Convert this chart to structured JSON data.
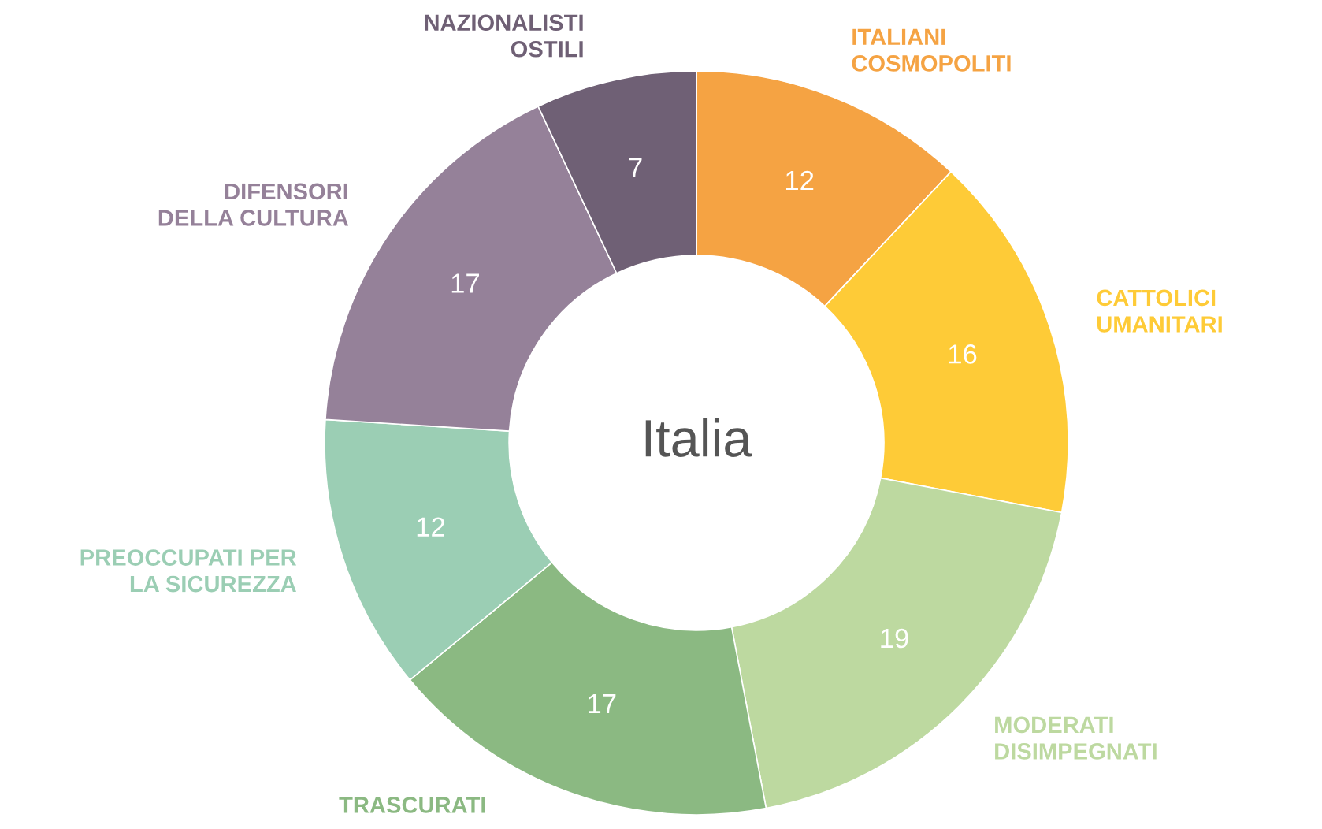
{
  "chart_data": {
    "type": "donut",
    "title": "Italia",
    "categories": [
      "ITALIANI\nCOSMOPOLITI",
      "CATTOLICI\nUMANITARI",
      "MODERATI\nDISIMPEGNATI",
      "TRASCURATI",
      "PREOCCUPATI PER\nLA SICUREZZA",
      "DIFENSORI\nDELLA CULTURA",
      "NAZIONALISTI\nOSTILI"
    ],
    "values": [
      12,
      16,
      19,
      17,
      12,
      17,
      7
    ],
    "colors": [
      "#f5a343",
      "#fecb37",
      "#bdd9a0",
      "#8bb982",
      "#9bceb4",
      "#958199",
      "#6f6075"
    ],
    "data_labels": true
  }
}
